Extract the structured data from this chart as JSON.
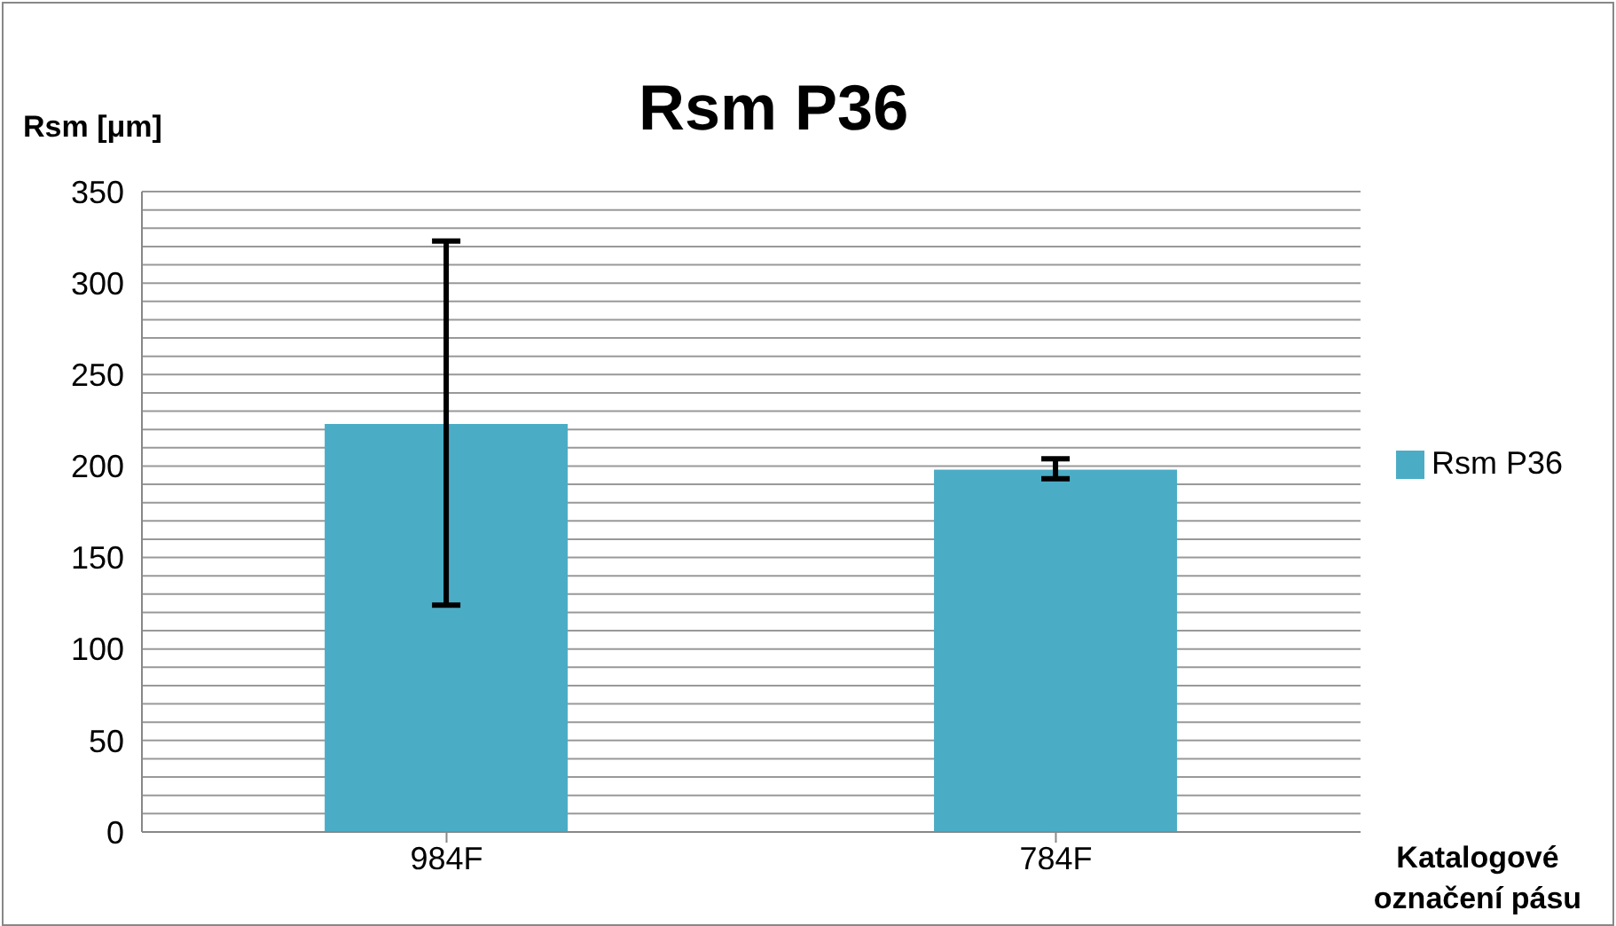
{
  "chart_data": {
    "type": "bar",
    "title": "Rsm P36",
    "ylabel": "Rsm [μm]",
    "xlabel": "Katalogové označení pásu",
    "categories": [
      "984F",
      "784F"
    ],
    "series": [
      {
        "name": "Rsm P36",
        "color": "#4bacc6",
        "values": [
          223,
          198
        ],
        "errors": [
          [
            124,
            323
          ],
          [
            193,
            204
          ]
        ]
      }
    ],
    "ylim": [
      0,
      350
    ],
    "yticks": [
      0,
      {
        "value": 10,
        "label": null
      },
      {
        "value": 20,
        "label": null
      },
      {
        "value": 30,
        "label": null
      },
      {
        "value": 40,
        "label": null
      },
      50,
      {
        "value": 60,
        "label": null
      },
      {
        "value": 70,
        "label": null
      },
      {
        "value": 80,
        "label": null
      },
      {
        "value": 90,
        "label": null
      },
      100,
      {
        "value": 110,
        "label": null
      },
      {
        "value": 120,
        "label": null
      },
      {
        "value": 130,
        "label": null
      },
      {
        "value": 140,
        "label": null
      },
      150,
      {
        "value": 160,
        "label": null
      },
      {
        "value": 170,
        "label": null
      },
      {
        "value": 180,
        "label": null
      },
      {
        "value": 190,
        "label": null
      },
      200,
      {
        "value": 210,
        "label": null
      },
      {
        "value": 220,
        "label": null
      },
      {
        "value": 230,
        "label": null
      },
      {
        "value": 240,
        "label": null
      },
      250,
      {
        "value": 260,
        "label": null
      },
      {
        "value": 270,
        "label": null
      },
      {
        "value": 280,
        "label": null
      },
      {
        "value": 290,
        "label": null
      },
      300,
      {
        "value": 310,
        "label": null
      },
      {
        "value": 320,
        "label": null
      },
      {
        "value": 330,
        "label": null
      },
      {
        "value": 340,
        "label": null
      },
      350
    ],
    "grid": "y",
    "legend": "right"
  }
}
